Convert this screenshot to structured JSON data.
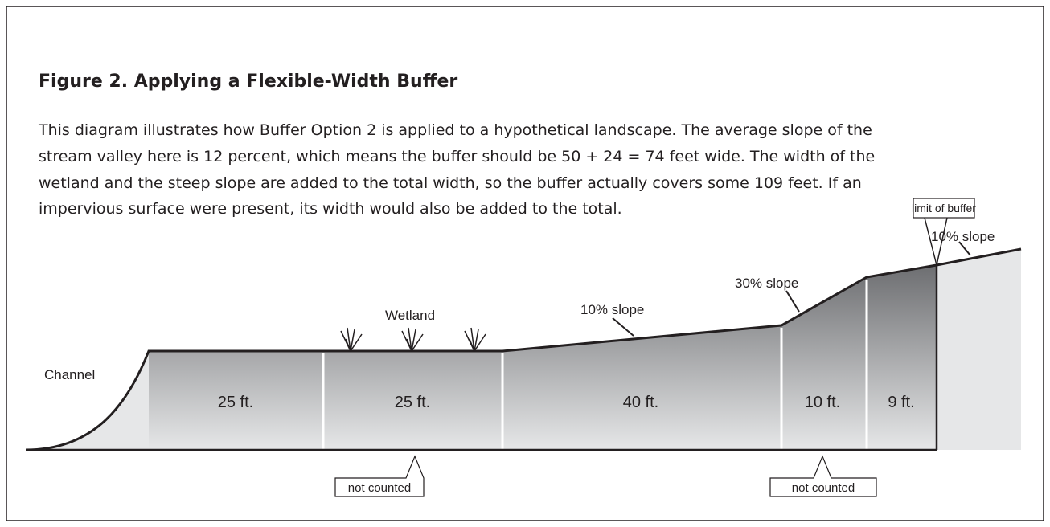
{
  "figure": {
    "title": "Figure 2.  Applying a Flexible-Width Buffer",
    "paragraph": [
      "This diagram illustrates how Buffer Option 2 is applied to a hypothetical landscape. The average slope of the",
      "stream valley here is 12 percent, which means the buffer should be 50 + 24 = 74 feet wide. The width of the",
      "wetland and the steep slope are added to the total width, so the buffer actually covers some 109 feet.  If an",
      "impervious surface were present, its width would also be added to the total."
    ],
    "labels": {
      "limit_of_buffer": "limit of buffer",
      "upper_slope": "10% slope",
      "steep_slope": "30% slope",
      "middle_slope": "10% slope",
      "wetland": "Wetland",
      "channel": "Channel",
      "not_counted_wetland": "not counted",
      "not_counted_steep": "not counted"
    },
    "segments": [
      "25 ft.",
      "25 ft.",
      "40 ft.",
      "10 ft.",
      "9 ft."
    ]
  }
}
